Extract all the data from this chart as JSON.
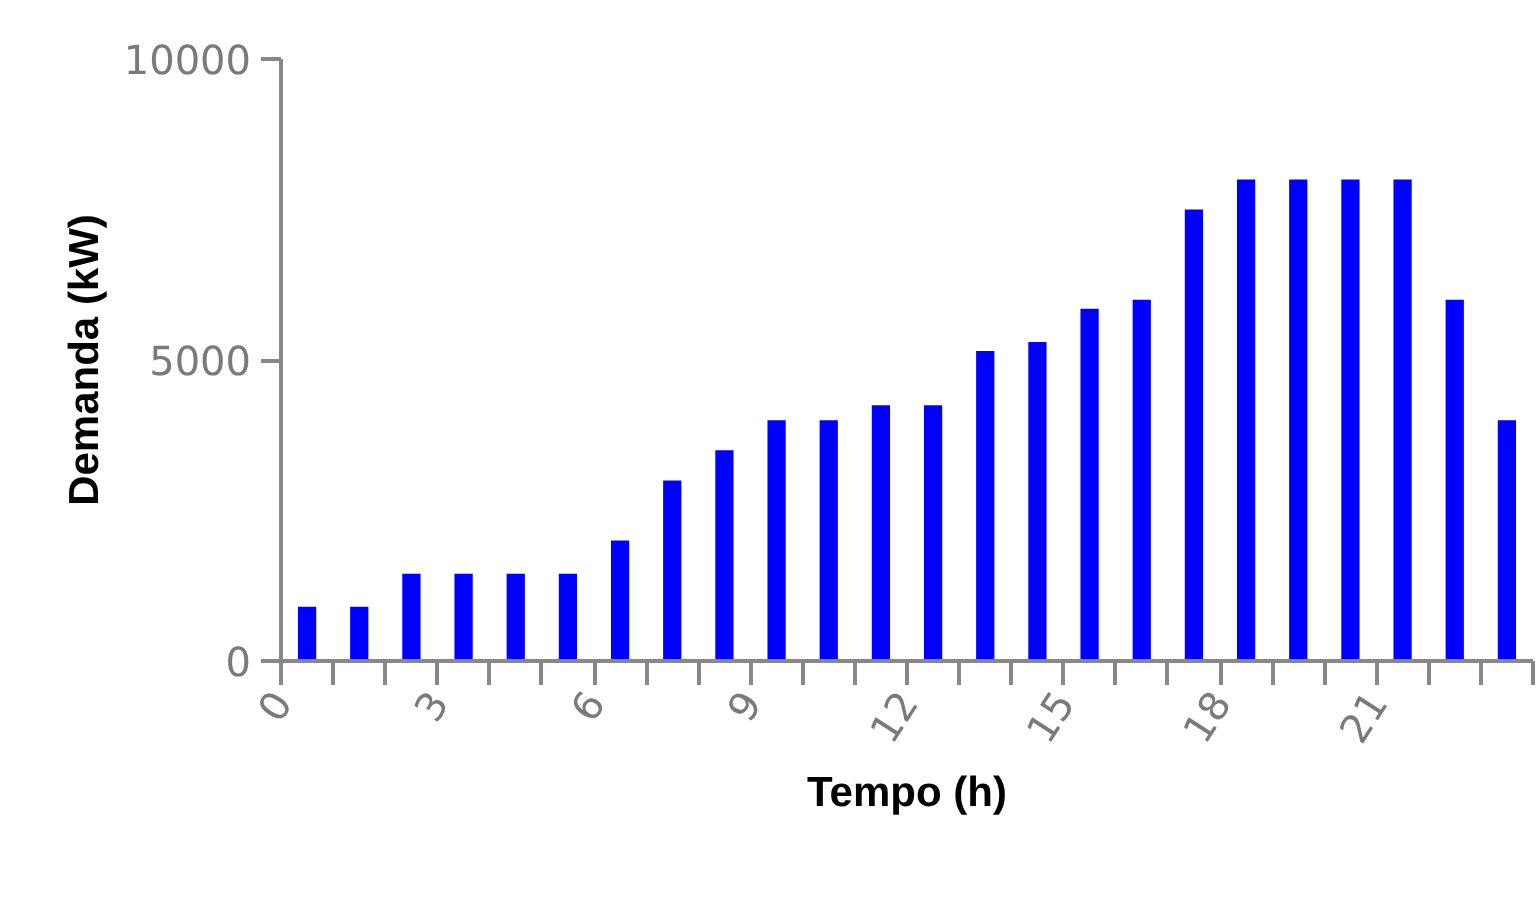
{
  "chart_data": {
    "type": "bar",
    "xlabel": "Tempo (h)",
    "ylabel": "Demanda (kW)",
    "color": "#0000ff",
    "x": [
      0.5,
      1.5,
      2.5,
      3.5,
      4.5,
      5.5,
      6.5,
      7.5,
      8.5,
      9.5,
      10.5,
      11.5,
      12.5,
      13.5,
      14.5,
      15.5,
      16.5,
      17.5,
      18.5,
      19.5,
      20.5,
      21.5,
      22.5,
      23.5
    ],
    "values": [
      900,
      900,
      1450,
      1450,
      1450,
      1450,
      2000,
      3000,
      3500,
      4000,
      4000,
      4250,
      4250,
      5150,
      5300,
      5850,
      6000,
      7500,
      8000,
      8000,
      8000,
      8000,
      6000,
      4000
    ],
    "xlim": [
      0,
      24
    ],
    "xticks": [
      0,
      {
        "value": 1,
        "label": null
      },
      {
        "value": 2,
        "label": null
      },
      3,
      {
        "value": 4,
        "label": null
      },
      {
        "value": 5,
        "label": null
      },
      6,
      {
        "value": 7,
        "label": null
      },
      {
        "value": 8,
        "label": null
      },
      9,
      {
        "value": 10,
        "label": null
      },
      {
        "value": 11,
        "label": null
      },
      12,
      {
        "value": 13,
        "label": null
      },
      {
        "value": 14,
        "label": null
      },
      15,
      {
        "value": 16,
        "label": null
      },
      {
        "value": 17,
        "label": null
      },
      18,
      {
        "value": 19,
        "label": null
      },
      {
        "value": 20,
        "label": null
      },
      21,
      {
        "value": 22,
        "label": null
      },
      {
        "value": 23,
        "label": null
      },
      {
        "value": 24,
        "label": null
      }
    ],
    "ylim": [
      0,
      10000
    ],
    "yticks": [
      0,
      5000,
      10000
    ],
    "grid": false
  }
}
